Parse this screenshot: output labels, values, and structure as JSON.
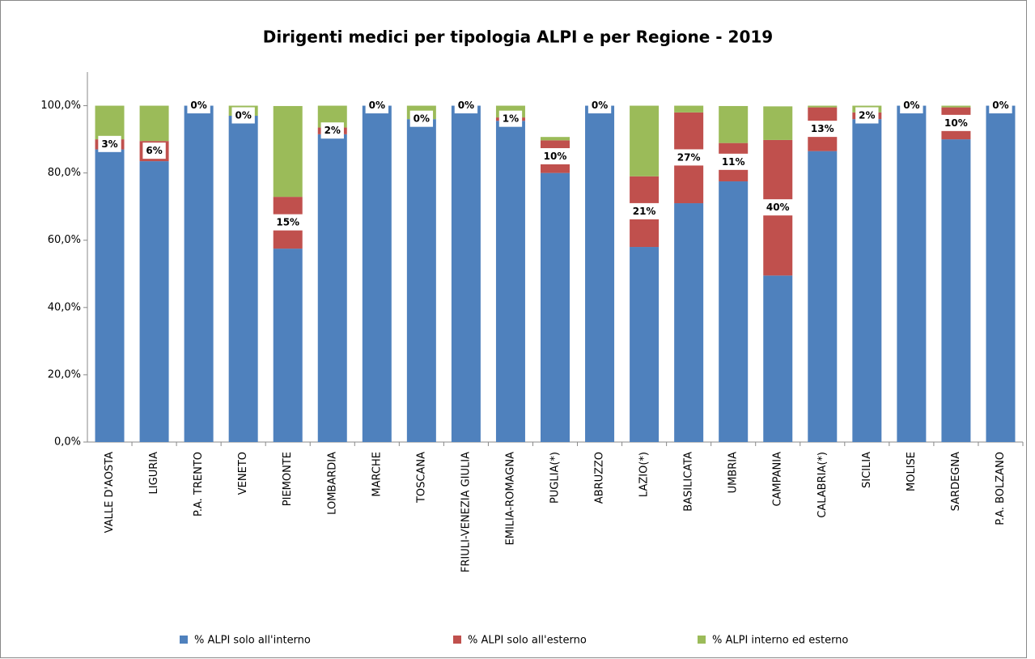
{
  "chart_data": {
    "type": "stacked_bar",
    "title": "Dirigenti medici per tipologia ALPI e per Regione - 2019",
    "categories": [
      "VALLE D'AOSTA",
      "LIGURIA",
      "P.A. TRENTO",
      "VENETO",
      "PIEMONTE",
      "LOMBARDIA",
      "MARCHE",
      "TOSCANA",
      "FRIULI-VENEZIA GIULIA",
      "EMILIA-ROMAGNA",
      "PUGLIA(*)",
      "ABRUZZO",
      "LAZIO(*)",
      "BASILICATA",
      "UMBRIA",
      "CAMPANIA",
      "CALABRIA(*)",
      "SICILIA",
      "MOLISE",
      "SARDEGNA",
      "P.A. BOLZANO"
    ],
    "series": [
      {
        "name": "% ALPI solo all'interno",
        "color": "#4f81bd",
        "values": [
          87,
          83.5,
          100,
          97,
          57.5,
          91.5,
          100,
          96,
          100,
          95.5,
          80,
          100,
          58,
          71,
          77.5,
          49.5,
          86.5,
          96,
          100,
          90,
          100
        ]
      },
      {
        "name": "% ALPI solo all'esterno",
        "color": "#c0504d",
        "values": [
          3,
          6,
          0,
          0,
          15.4,
          2,
          0,
          0,
          0,
          1,
          9.7,
          0,
          21,
          27,
          11.4,
          40.3,
          13,
          2,
          0,
          9.5,
          0
        ],
        "value_labels": [
          "3%",
          "6%",
          "0%",
          "0%",
          "15%",
          "2%",
          "0%",
          "0%",
          "0%",
          "1%",
          "10%",
          "0%",
          "21%",
          "27%",
          "11%",
          "40%",
          "13%",
          "2%",
          "0%",
          "10%",
          "0%"
        ]
      },
      {
        "name": "% ALPI interno ed esterno",
        "color": "#9bbb59",
        "values": [
          10,
          10.5,
          0,
          3,
          27,
          6.5,
          0,
          4,
          0,
          3.5,
          1,
          0,
          21,
          2,
          11,
          10,
          0.5,
          2,
          0,
          0.5,
          0
        ]
      }
    ],
    "ylim": [
      0,
      110
    ],
    "yticks": [
      {
        "value": 0,
        "label": "0,0%"
      },
      {
        "value": 20,
        "label": "20,0%"
      },
      {
        "value": 40,
        "label": "40,0%"
      },
      {
        "value": 60,
        "label": "60,0%"
      },
      {
        "value": 80,
        "label": "80,0%"
      },
      {
        "value": 100,
        "label": "100,0%"
      }
    ],
    "legend": "bottom"
  }
}
